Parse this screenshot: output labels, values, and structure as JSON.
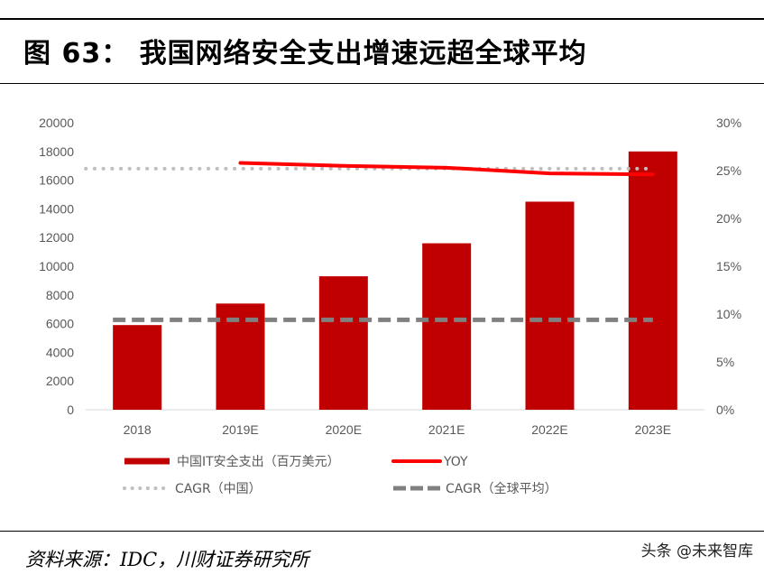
{
  "title": "图 63：  我国网络安全支出增速远超全球平均",
  "source": "资料来源：IDC，川财证券研究所",
  "watermark": "头条 @未来智库",
  "chart_data": {
    "type": "bar",
    "categories": [
      "2018",
      "2019E",
      "2020E",
      "2021E",
      "2022E",
      "2023E"
    ],
    "series": [
      {
        "name": "中国IT安全支出（百万美元）",
        "type": "bar",
        "axis": "left",
        "color": "#C00000",
        "values": [
          5900,
          7400,
          9300,
          11600,
          14500,
          18000
        ]
      },
      {
        "name": "YOY",
        "type": "line",
        "axis": "right",
        "color": "#FF0000",
        "values": [
          null,
          25.8,
          25.5,
          25.3,
          24.7,
          24.6
        ]
      },
      {
        "name": "CAGR（中国）",
        "type": "line",
        "style": "dotted",
        "axis": "right",
        "color": "#BFBFBF",
        "values": [
          25.2,
          25.2,
          25.2,
          25.2,
          25.2,
          25.2
        ]
      },
      {
        "name": "CAGR（全球平均）",
        "type": "line",
        "style": "dashed",
        "axis": "right",
        "color": "#808080",
        "values": [
          9.4,
          9.4,
          9.4,
          9.4,
          9.4,
          9.4
        ]
      }
    ],
    "ylim": [
      0,
      20000
    ],
    "yticks": [
      "0",
      "2000",
      "4000",
      "6000",
      "8000",
      "10000",
      "12000",
      "14000",
      "16000",
      "18000",
      "20000"
    ],
    "y2lim": [
      0,
      30
    ],
    "y2ticks": [
      "0%",
      "5%",
      "10%",
      "15%",
      "20%",
      "25%",
      "30%"
    ],
    "grid": false,
    "legend": "bottom"
  }
}
